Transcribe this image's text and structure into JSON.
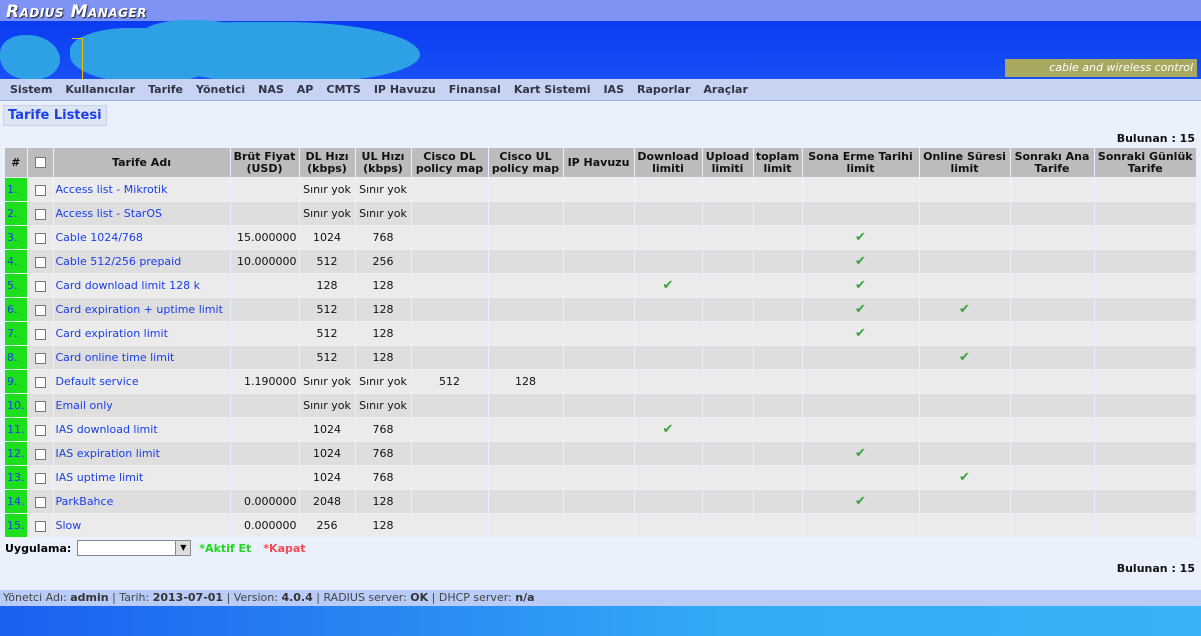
{
  "app": {
    "logo": "Radius Manager",
    "tagline": "cable and wireless control"
  },
  "nav": [
    "Sistem",
    "Kullanıcılar",
    "Tarife",
    "Yönetici",
    "NAS",
    "AP",
    "CMTS",
    "IP Havuzu",
    "Finansal",
    "Kart Sistemi",
    "IAS",
    "Raporlar",
    "Araçlar"
  ],
  "page_title": "Tarife Listesi",
  "found_label": "Bulunan : 15",
  "columns": [
    "#",
    "",
    "Tarife Adı",
    "Brüt Fiyat (USD)",
    "DL Hızı (kbps)",
    "UL Hızı (kbps)",
    "Cisco DL policy map",
    "Cisco UL policy map",
    "IP Havuzu",
    "Download limiti",
    "Upload limiti",
    "toplam limit",
    "Sona Erme Tarihi limit",
    "Online Süresi limit",
    "Sonrakı Ana Tarife",
    "Sonraki Günlük Tarife"
  ],
  "rows": [
    {
      "n": "1.",
      "name": "Access list - Mikrotik",
      "price": "",
      "dl": "Sınır yok",
      "ul": "Sınır yok",
      "cdl": "",
      "cul": "",
      "dlim": false,
      "exp": false,
      "onl": false
    },
    {
      "n": "2.",
      "name": "Access list - StarOS",
      "price": "",
      "dl": "Sınır yok",
      "ul": "Sınır yok",
      "cdl": "",
      "cul": "",
      "dlim": false,
      "exp": false,
      "onl": false
    },
    {
      "n": "3.",
      "name": "Cable 1024/768",
      "price": "15.000000",
      "dl": "1024",
      "ul": "768",
      "cdl": "",
      "cul": "",
      "dlim": false,
      "exp": true,
      "onl": false
    },
    {
      "n": "4.",
      "name": "Cable 512/256 prepaid",
      "price": "10.000000",
      "dl": "512",
      "ul": "256",
      "cdl": "",
      "cul": "",
      "dlim": false,
      "exp": true,
      "onl": false
    },
    {
      "n": "5.",
      "name": "Card download limit 128 k",
      "price": "",
      "dl": "128",
      "ul": "128",
      "cdl": "",
      "cul": "",
      "dlim": true,
      "exp": true,
      "onl": false
    },
    {
      "n": "6.",
      "name": "Card expiration + uptime limit",
      "price": "",
      "dl": "512",
      "ul": "128",
      "cdl": "",
      "cul": "",
      "dlim": false,
      "exp": true,
      "onl": true
    },
    {
      "n": "7.",
      "name": "Card expiration limit",
      "price": "",
      "dl": "512",
      "ul": "128",
      "cdl": "",
      "cul": "",
      "dlim": false,
      "exp": true,
      "onl": false
    },
    {
      "n": "8.",
      "name": "Card online time limit",
      "price": "",
      "dl": "512",
      "ul": "128",
      "cdl": "",
      "cul": "",
      "dlim": false,
      "exp": false,
      "onl": true
    },
    {
      "n": "9.",
      "name": "Default service",
      "price": "1.190000",
      "dl": "Sınır yok",
      "ul": "Sınır yok",
      "cdl": "512",
      "cul": "128",
      "dlim": false,
      "exp": false,
      "onl": false
    },
    {
      "n": "10.",
      "name": "Email only",
      "price": "",
      "dl": "Sınır yok",
      "ul": "Sınır yok",
      "cdl": "",
      "cul": "",
      "dlim": false,
      "exp": false,
      "onl": false
    },
    {
      "n": "11.",
      "name": "IAS download limit",
      "price": "",
      "dl": "1024",
      "ul": "768",
      "cdl": "",
      "cul": "",
      "dlim": true,
      "exp": false,
      "onl": false
    },
    {
      "n": "12.",
      "name": "IAS expiration limit",
      "price": "",
      "dl": "1024",
      "ul": "768",
      "cdl": "",
      "cul": "",
      "dlim": false,
      "exp": true,
      "onl": false
    },
    {
      "n": "13.",
      "name": "IAS uptime limit",
      "price": "",
      "dl": "1024",
      "ul": "768",
      "cdl": "",
      "cul": "",
      "dlim": false,
      "exp": false,
      "onl": true
    },
    {
      "n": "14.",
      "name": "ParkBahce",
      "price": "0.000000",
      "dl": "2048",
      "ul": "128",
      "cdl": "",
      "cul": "",
      "dlim": false,
      "exp": true,
      "onl": false
    },
    {
      "n": "15.",
      "name": "Slow",
      "price": "0.000000",
      "dl": "256",
      "ul": "128",
      "cdl": "",
      "cul": "",
      "dlim": false,
      "exp": false,
      "onl": false
    }
  ],
  "check_glyph": "✔",
  "apply": {
    "label": "Uygulama:",
    "select_value": "",
    "activate": "*Aktif Et",
    "close": "*Kapat"
  },
  "footer": {
    "admin_label": "Yönetci Adı:",
    "admin": "admin",
    "date_label": "Tarih:",
    "date": "2013-07-01",
    "version_label": "Version:",
    "version": "4.0.4",
    "radius_label": "RADIUS server:",
    "radius": "OK",
    "dhcp_label": "DHCP server:",
    "dhcp": "n/a"
  }
}
